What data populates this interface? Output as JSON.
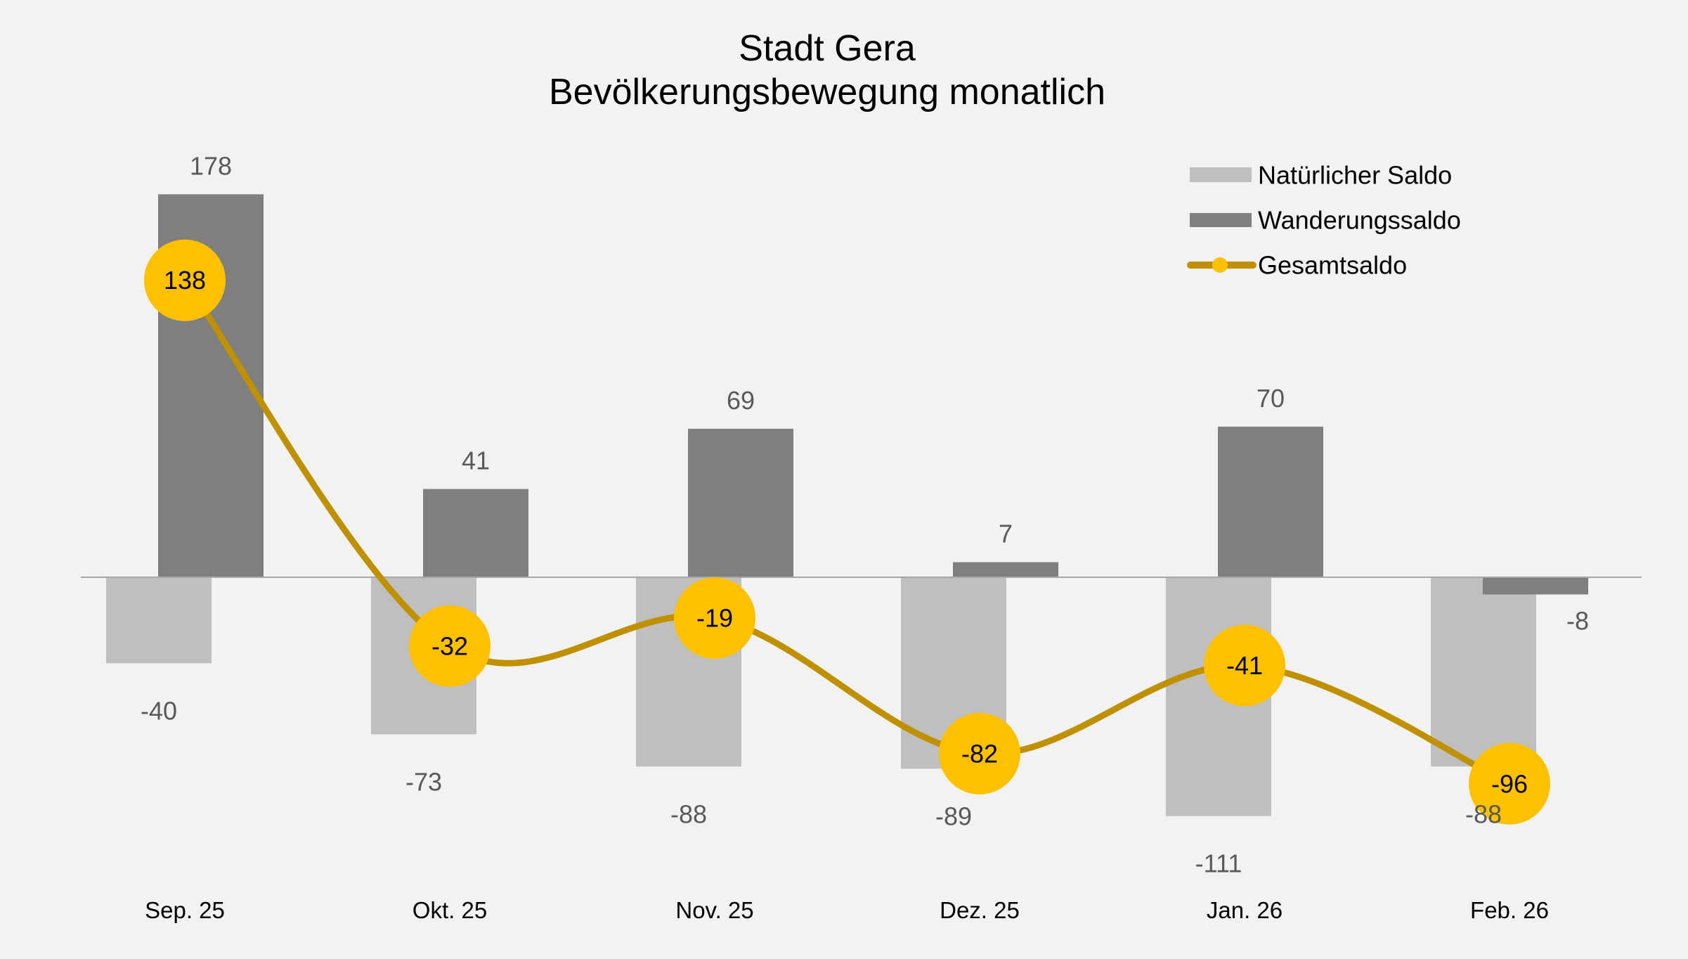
{
  "chart_data": {
    "type": "bar+line",
    "title": [
      "Stadt Gera",
      "Bevölkerungsbewegung monatlich"
    ],
    "categories": [
      "Sep. 25",
      "Okt. 25",
      "Nov. 25",
      "Dez. 25",
      "Jan. 26",
      "Feb. 26"
    ],
    "series": [
      {
        "name": "Natürlicher Saldo",
        "type": "bar",
        "color": "#bfbfbf",
        "values": [
          -40,
          -73,
          -88,
          -89,
          -111,
          -88
        ]
      },
      {
        "name": "Wanderungssaldo",
        "type": "bar",
        "color": "#7f7f7f",
        "values": [
          178,
          41,
          69,
          7,
          70,
          -8
        ]
      },
      {
        "name": "Gesamtsaldo",
        "type": "line",
        "color": "#bf9000",
        "marker_color": "#ffc000",
        "smooth": true,
        "values": [
          138,
          -32,
          -19,
          -82,
          -41,
          -96
        ]
      }
    ],
    "legend": "top-right",
    "grid": false,
    "ylim": [
      -130,
      190
    ]
  }
}
